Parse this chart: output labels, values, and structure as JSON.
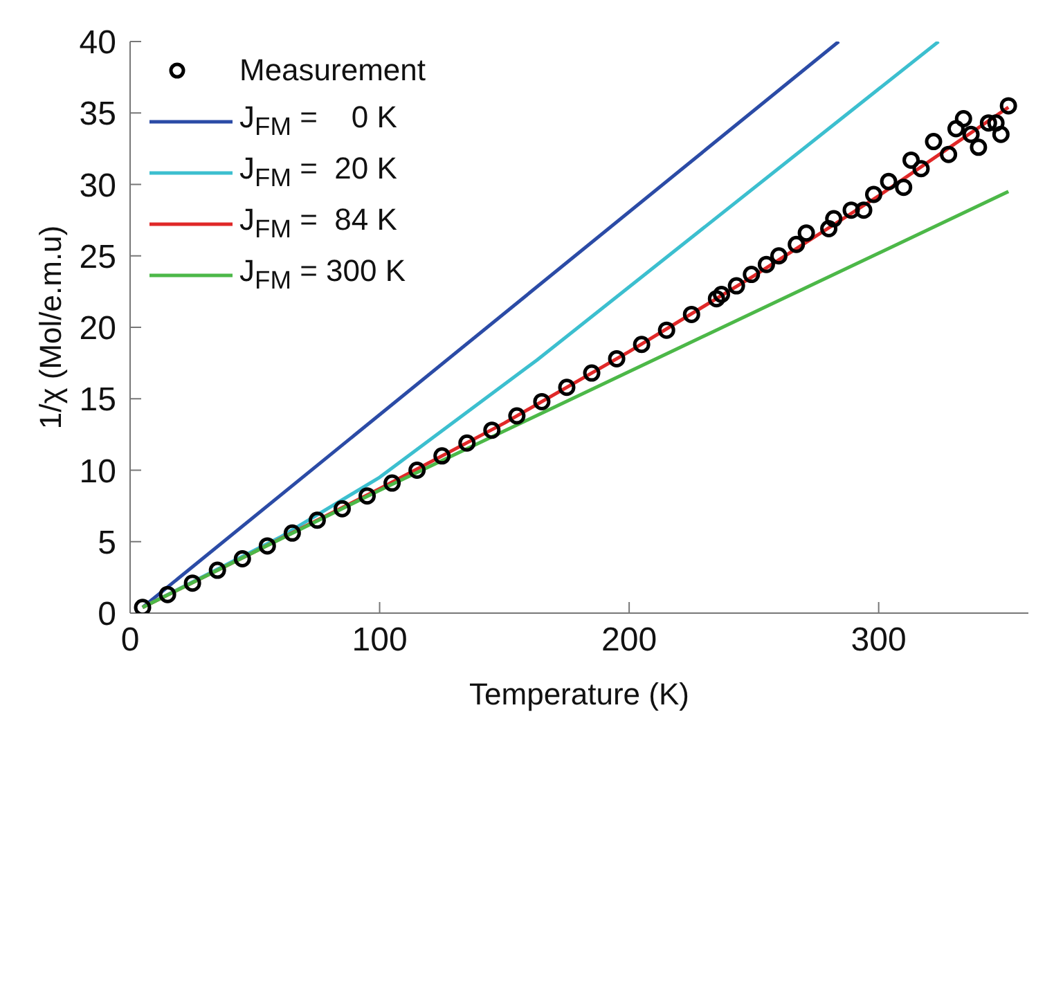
{
  "chart_data": {
    "type": "line",
    "xlabel": "Temperature (K)",
    "ylabel": "1/χ (Mol/e.m.u)",
    "xlim": [
      0,
      360
    ],
    "xticks": [
      0,
      100,
      200,
      300
    ],
    "ylim": [
      0,
      40
    ],
    "yticks": [
      0,
      5,
      10,
      15,
      20,
      25,
      30,
      35,
      40
    ],
    "grid": false,
    "legend": "top left",
    "series": [
      {
        "name": "Measurement",
        "type": "scatter",
        "marker": "circle",
        "color": "#000000",
        "x": [
          5,
          15,
          25,
          35,
          45,
          55,
          65,
          75,
          85,
          95,
          105,
          115,
          125,
          135,
          145,
          155,
          165,
          175,
          185,
          195,
          205,
          215,
          225,
          235,
          237,
          243,
          249,
          255,
          260,
          267,
          271,
          280,
          282,
          289,
          294,
          298,
          304,
          310,
          313,
          317,
          322,
          328,
          331,
          334,
          337,
          340,
          344,
          347,
          349,
          352
        ],
        "values": [
          0.4,
          1.3,
          2.1,
          3.0,
          3.8,
          4.7,
          5.6,
          6.5,
          7.3,
          8.2,
          9.1,
          10.0,
          11.0,
          11.9,
          12.8,
          13.8,
          14.8,
          15.8,
          16.8,
          17.8,
          18.8,
          19.8,
          20.9,
          22.0,
          22.3,
          22.9,
          23.7,
          24.4,
          25.0,
          25.8,
          26.6,
          26.9,
          27.6,
          28.2,
          28.2,
          29.3,
          30.2,
          29.8,
          31.7,
          31.1,
          33.0,
          32.1,
          33.9,
          34.6,
          33.5,
          32.6,
          34.3,
          34.3,
          33.5,
          35.5
        ]
      },
      {
        "name": "J$_{FM}$ =    0 K",
        "marker": "none",
        "color": "#2b4ba6",
        "x": [
          5,
          284
        ],
        "values": [
          0.4,
          40
        ]
      },
      {
        "name": "J$_{FM}$ =  20 K",
        "marker": "none",
        "color": "#3cbfcf",
        "x": [
          5,
          60,
          100,
          163,
          324
        ],
        "values": [
          0.4,
          5.3,
          9.5,
          17.7,
          40
        ]
      },
      {
        "name": "J$_{FM}$ =  84 K",
        "marker": "none",
        "color": "#e02828",
        "x": [
          5,
          50,
          100,
          150,
          200,
          250,
          300,
          352
        ],
        "values": [
          0.4,
          4.3,
          8.7,
          13.3,
          18.3,
          23.6,
          29.2,
          35.4
        ]
      },
      {
        "name": "J$_{FM}$ = 300 K",
        "marker": "none",
        "color": "#4cb848",
        "x": [
          5,
          50,
          100,
          200,
          352
        ],
        "values": [
          0.4,
          4.3,
          8.6,
          16.9,
          29.5
        ]
      }
    ]
  }
}
